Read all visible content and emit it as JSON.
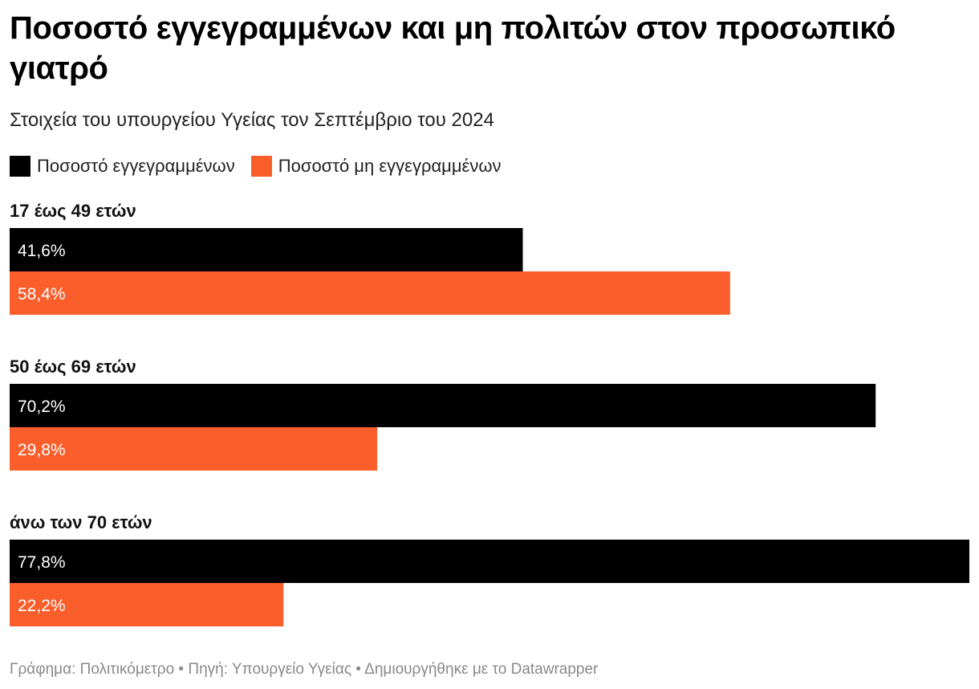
{
  "header": {
    "title": "Ποσοστό εγγεγραμμένων και μη πολιτών στον προσωπικό γιατρό",
    "subtitle": "Στοιχεία του υπουργείου Υγείας τον Σεπτέμβριο του 2024"
  },
  "colors": {
    "registered": "#000000",
    "unregistered": "#fa5e2b"
  },
  "chart_data": {
    "type": "bar",
    "orientation": "horizontal",
    "grouped": true,
    "categories": [
      "17 έως 49 ετών",
      "50 έως 69 ετών",
      "άνω των 70 ετών"
    ],
    "series": [
      {
        "name": "Ποσοστό εγγεγραμμένων",
        "values": [
          41.6,
          70.2,
          77.8
        ],
        "labels": [
          "41,6%",
          "70,2%",
          "77,8%"
        ],
        "color": "#000000"
      },
      {
        "name": "Ποσοστό μη εγγεγραμμένων",
        "values": [
          58.4,
          29.8,
          22.2
        ],
        "labels": [
          "58,4%",
          "29,8%",
          "22,2%"
        ],
        "color": "#fa5e2b"
      }
    ],
    "xlim": [
      0,
      77.8
    ],
    "grid": false,
    "legend_position": "top-left"
  },
  "footer": {
    "graph_credit": "Γράφημα: Πολιτικόμετρο",
    "source": "Πηγή: Υπουργείο Υγείας",
    "made_with": "Δημιουργήθηκε με το Datawrapper",
    "separator": "•"
  }
}
